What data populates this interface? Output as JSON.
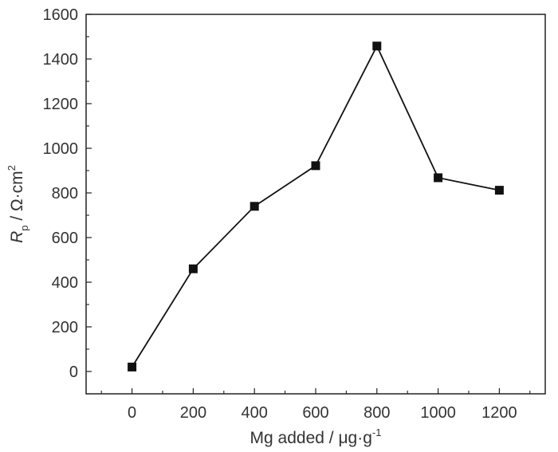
{
  "chart_data": {
    "type": "line",
    "title": "",
    "x": [
      0,
      200,
      400,
      600,
      800,
      1000,
      1200
    ],
    "series": [
      {
        "values": [
          20,
          460,
          740,
          922,
          1458,
          868,
          812
        ]
      }
    ],
    "xlim": [
      -150,
      1350
    ],
    "ylim": [
      -100,
      1600
    ],
    "xticks": [
      0,
      200,
      400,
      600,
      800,
      1000,
      1200
    ],
    "yticks": [
      0,
      200,
      400,
      600,
      800,
      1000,
      1200,
      1400,
      1600
    ],
    "xlabel": {
      "main": "Mg added / μg·g",
      "sup": "-1"
    },
    "ylabel": {
      "symbol": "R",
      "sub": "p",
      "unit": " / Ω·cm",
      "sup": "2"
    },
    "marker": "square",
    "grid": false,
    "legend": "none",
    "colors": {
      "series": "#111111",
      "axis": "#222222",
      "text": "#333333"
    }
  }
}
